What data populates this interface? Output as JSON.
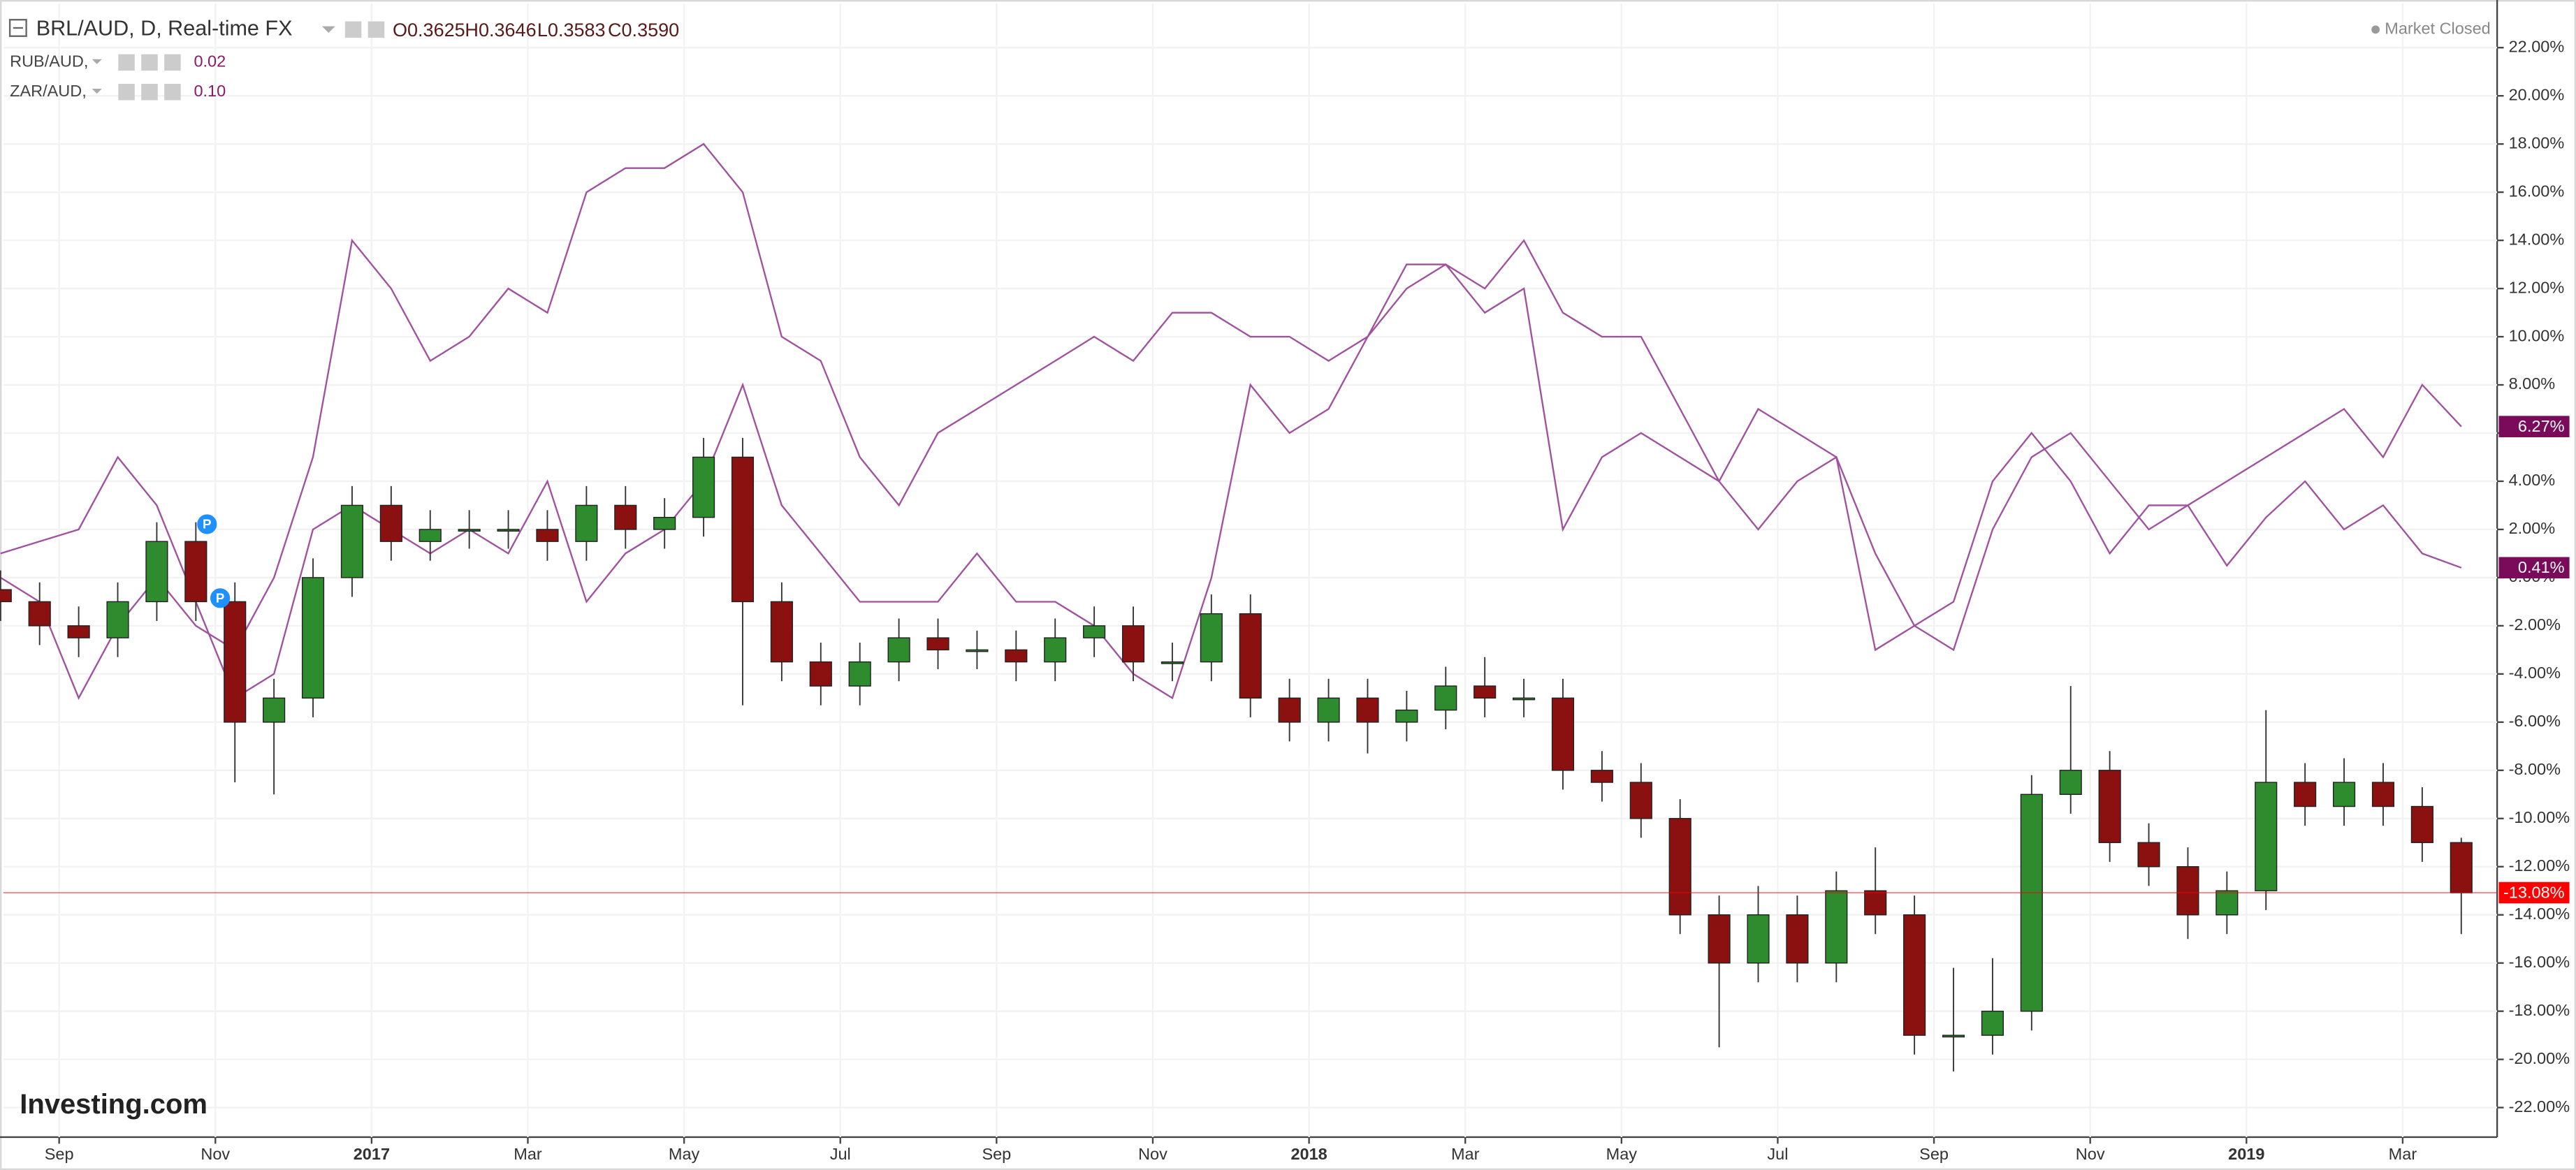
{
  "chart_data": {
    "type": "candlestick",
    "title": "BRL/AUD, D, Real-time FX",
    "ohlc_readout": [
      "O0.3625",
      "H0.3646",
      "L0.3583",
      "C0.3590"
    ],
    "status": "Market Closed",
    "brand": "Investing.com",
    "event_markers": [
      "P",
      "P"
    ],
    "xlim": [
      "2016-08",
      "2019-04"
    ],
    "xticks": [
      {
        "value": "2016-09",
        "label": "Sep"
      },
      {
        "value": "2016-11",
        "label": "Nov"
      },
      {
        "value": "2017-01",
        "label": "2017"
      },
      {
        "value": "2017-03",
        "label": "Mar"
      },
      {
        "value": "2017-05",
        "label": "May"
      },
      {
        "value": "2017-07",
        "label": "Jul"
      },
      {
        "value": "2017-09",
        "label": "Sep"
      },
      {
        "value": "2017-11",
        "label": "Nov"
      },
      {
        "value": "2018-01",
        "label": "2018"
      },
      {
        "value": "2018-03",
        "label": "Mar"
      },
      {
        "value": "2018-05",
        "label": "May"
      },
      {
        "value": "2018-07",
        "label": "Jul"
      },
      {
        "value": "2018-09",
        "label": "Sep"
      },
      {
        "value": "2018-11",
        "label": "Nov"
      },
      {
        "value": "2019-01",
        "label": "2019"
      },
      {
        "value": "2019-03",
        "label": "Mar"
      }
    ],
    "ylim": [
      -23.5,
      23.5
    ],
    "yticks": [
      {
        "value": 22,
        "label": "22.00%"
      },
      {
        "value": 20,
        "label": "20.00%"
      },
      {
        "value": 18,
        "label": "18.00%"
      },
      {
        "value": 16,
        "label": "16.00%"
      },
      {
        "value": 14,
        "label": "14.00%"
      },
      {
        "value": 12,
        "label": "12.00%"
      },
      {
        "value": 10,
        "label": "10.00%"
      },
      {
        "value": 8,
        "label": "8.00%"
      },
      {
        "value": 6,
        "label": "6.00%"
      },
      {
        "value": 4,
        "label": "4.00%"
      },
      {
        "value": 2,
        "label": "2.00%"
      },
      {
        "value": 0,
        "label": "0.00%"
      },
      {
        "value": -2,
        "label": "-2.00%"
      },
      {
        "value": -4,
        "label": "-4.00%"
      },
      {
        "value": -6,
        "label": "-6.00%"
      },
      {
        "value": -8,
        "label": "-8.00%"
      },
      {
        "value": -10,
        "label": "-10.00%"
      },
      {
        "value": -12,
        "label": "-12.00%"
      },
      {
        "value": -14,
        "label": "-14.00%"
      },
      {
        "value": -16,
        "label": "-16.00%"
      },
      {
        "value": -18,
        "label": "-18.00%"
      },
      {
        "value": -20,
        "label": "-20.00%"
      },
      {
        "value": -22,
        "label": "-22.00%"
      }
    ],
    "grid": true,
    "candles": {
      "name": "BRL/AUD",
      "up_color": "#2e8b2e",
      "down_color": "#8b1010",
      "open": [
        -0.5,
        -1,
        -2,
        -2.5,
        -1,
        1.5,
        -1,
        -6,
        -5,
        0,
        3,
        1.5,
        2,
        2,
        2,
        1.5,
        3,
        2,
        2.5,
        5,
        -1,
        -3.5,
        -4.5,
        -3.5,
        -2.5,
        -3,
        -3,
        -3.5,
        -2.5,
        -2,
        -3.5,
        -3.5,
        -1.5,
        -5,
        -6,
        -5,
        -6,
        -5.5,
        -4.5,
        -5,
        -5,
        -8,
        -8.5,
        -10,
        -14,
        -16,
        -14,
        -16,
        -13,
        -14,
        -19,
        -19,
        -18,
        -9,
        -8,
        -11,
        -12,
        -14,
        -13,
        -8.5,
        -9.5,
        -8.5,
        -9.5,
        -11
      ],
      "high": [
        0.3,
        -0.2,
        -1.2,
        -0.2,
        2.3,
        2.3,
        -0.2,
        -4.2,
        0.8,
        3.8,
        3.8,
        2.8,
        2.8,
        2.8,
        2.8,
        3.8,
        3.8,
        3.3,
        5.8,
        5.8,
        -0.2,
        -2.7,
        -2.7,
        -1.7,
        -1.7,
        -2.2,
        -2.2,
        -1.7,
        -1.2,
        -1.2,
        -2.7,
        -0.7,
        -0.7,
        -4.2,
        -4.2,
        -4.2,
        -4.7,
        -3.7,
        -3.3,
        -4.2,
        -4.2,
        -7.2,
        -7.7,
        -9.2,
        -13.2,
        -12.8,
        -13.2,
        -12.2,
        -11.2,
        -13.2,
        -16.2,
        -15.8,
        -8.2,
        -4.5,
        -7.2,
        -10.2,
        -11.2,
        -12.2,
        -5.5,
        -7.7,
        -7.5,
        -7.7,
        -8.7,
        -10.8
      ],
      "low": [
        -1.8,
        -2.8,
        -3.3,
        -3.3,
        -1.8,
        -1.8,
        -8.5,
        -9,
        -5.8,
        -0.8,
        0.7,
        0.7,
        1.2,
        1.2,
        0.7,
        0.7,
        1.2,
        1.2,
        1.7,
        -5.3,
        -4.3,
        -5.3,
        -5.3,
        -4.3,
        -3.8,
        -3.8,
        -4.3,
        -4.3,
        -3.3,
        -4.3,
        -4.3,
        -4.3,
        -5.8,
        -6.8,
        -6.8,
        -7.3,
        -6.8,
        -6.3,
        -5.8,
        -5.8,
        -8.8,
        -9.3,
        -10.8,
        -14.8,
        -19.5,
        -16.8,
        -16.8,
        -16.8,
        -14.8,
        -19.8,
        -20.5,
        -19.8,
        -18.8,
        -9.8,
        -11.8,
        -12.8,
        -15,
        -14.8,
        -13.8,
        -10.3,
        -10.3,
        -10.3,
        -11.8,
        -14.8
      ],
      "close": [
        -1,
        -2,
        -2.5,
        -1,
        1.5,
        -1,
        -6,
        -5,
        0,
        3,
        1.5,
        2,
        2,
        2,
        1.5,
        3,
        2,
        2.5,
        5,
        -1,
        -3.5,
        -4.5,
        -3.5,
        -2.5,
        -3,
        -3,
        -3.5,
        -2.5,
        -2,
        -3.5,
        -3.5,
        -1.5,
        -5,
        -6,
        -5,
        -6,
        -5.5,
        -4.5,
        -5,
        -5,
        -8,
        -8.5,
        -10,
        -14,
        -16,
        -14,
        -16,
        -13,
        -14,
        -19,
        -19,
        -18,
        -9,
        -8,
        -11,
        -12,
        -14,
        -13,
        -8.5,
        -9.5,
        -8.5,
        -9.5,
        -11,
        -13.08
      ],
      "last_value_label": "-13.08%",
      "last_color": "#ff0000"
    },
    "series": [
      {
        "name": "RUB/AUD,",
        "legend_value": "0.02",
        "color": "#a0529e",
        "label_color": "#7a0a5a",
        "values": [
          0,
          -1,
          -5,
          -2,
          0,
          -2,
          -3,
          0,
          5,
          14,
          12,
          9,
          10,
          12,
          11,
          16,
          17,
          17,
          18,
          16,
          10,
          9,
          5,
          3,
          6,
          7,
          8,
          9,
          10,
          9,
          11,
          11,
          10,
          10,
          9,
          10,
          13,
          13,
          12,
          14,
          11,
          10,
          10,
          7,
          4,
          2,
          4,
          5,
          1,
          -2,
          -3,
          2,
          5,
          6,
          4,
          2,
          3,
          0.5,
          2.5,
          4,
          2,
          3,
          1,
          0.41
        ],
        "last_value_label": "0.41%"
      },
      {
        "name": "ZAR/AUD,",
        "legend_value": "0.10",
        "color": "#a0529e",
        "label_color": "#7a0a5a",
        "values": [
          1,
          1.5,
          2,
          5,
          3,
          -1,
          -5,
          -4,
          2,
          3,
          2,
          1,
          2,
          1,
          4,
          -1,
          1,
          2,
          4,
          8,
          3,
          1,
          -1,
          -1,
          -1,
          1,
          -1,
          -1,
          -2,
          -4,
          -5,
          0,
          8,
          6,
          7,
          10,
          12,
          13,
          11,
          12,
          2,
          5,
          6,
          5,
          4,
          7,
          6,
          5,
          -3,
          -2,
          -1,
          4,
          6,
          4,
          1,
          3,
          3,
          4,
          5,
          6,
          7,
          5,
          8,
          6.27
        ],
        "last_value_label": "6.27%"
      }
    ]
  }
}
